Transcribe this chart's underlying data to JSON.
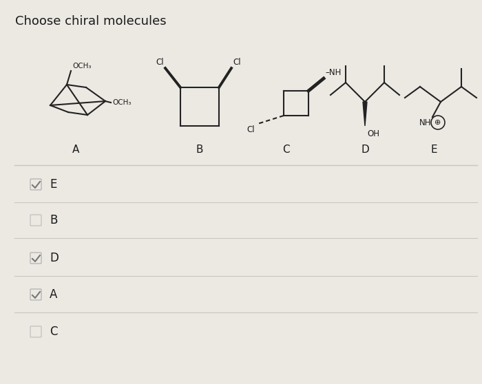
{
  "title": "Choose chiral molecules",
  "bg_color": "#ece9e3",
  "molecule_labels": [
    "A",
    "B",
    "C",
    "D",
    "E"
  ],
  "answer_options": [
    {
      "label": "E",
      "checked": true
    },
    {
      "label": "B",
      "checked": false
    },
    {
      "label": "D",
      "checked": true
    },
    {
      "label": "A",
      "checked": true
    },
    {
      "label": "C",
      "checked": false
    }
  ],
  "line_color": "#c8c5bf",
  "check_color": "#777777",
  "text_color": "#1a1a1a",
  "mol_line_color": "#222222",
  "title_fontsize": 13,
  "label_fontsize": 11,
  "option_fontsize": 12
}
